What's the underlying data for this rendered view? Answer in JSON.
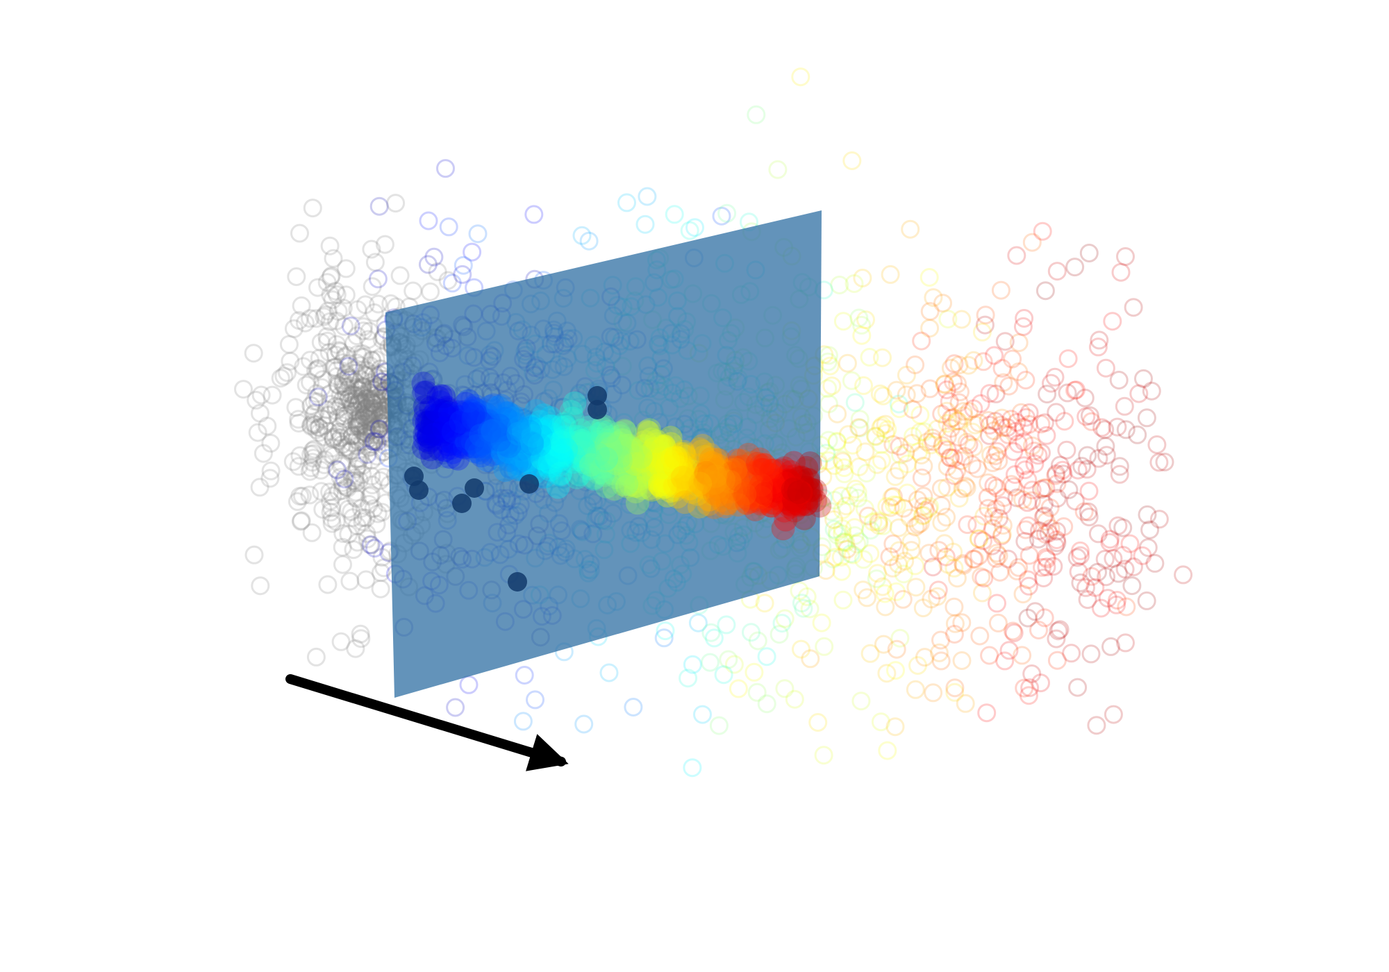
{
  "chart_data": {
    "type": "scatter",
    "projection": "3d",
    "title": "",
    "xlabel": "",
    "ylabel": "",
    "zlabel": "",
    "axes_visible": false,
    "grid": false,
    "legend": "none",
    "colormap": "jet",
    "colormap_stops": [
      "#00008f",
      "#0000ff",
      "#0080ff",
      "#00ffff",
      "#80ff80",
      "#ffff00",
      "#ff8000",
      "#ff0000",
      "#800000"
    ],
    "point_style": "open-circle",
    "series": [
      {
        "role": "background-cloud",
        "color": "#808080",
        "color_by": "none"
      },
      {
        "role": "scattered-points",
        "color_by": "colormap"
      },
      {
        "role": "dense-band",
        "color_by": "colormap"
      }
    ],
    "plane": {
      "color": "#2f6fa3",
      "opacity": 0.75
    },
    "arrow": {
      "color": "#000000",
      "direction": "down-right"
    }
  }
}
